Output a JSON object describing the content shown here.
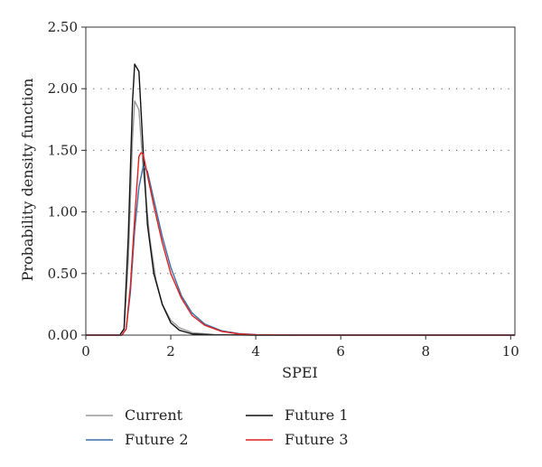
{
  "chart_data": {
    "type": "line",
    "title": "",
    "xlabel": "SPEI",
    "ylabel": "Probability density function",
    "xlim": [
      0,
      10.1
    ],
    "ylim": [
      0,
      2.5
    ],
    "x_ticks": [
      0,
      2,
      4,
      6,
      8,
      10
    ],
    "x_tick_labels": [
      "0",
      "2",
      "4",
      "6",
      "8",
      "10"
    ],
    "y_ticks": [
      0,
      0.5,
      1.0,
      1.5,
      2.0,
      2.5
    ],
    "y_tick_labels": [
      "0.00",
      "0.50",
      "1.00",
      "1.50",
      "2.00",
      "2.50"
    ],
    "grid": "horizontal dotted",
    "legend_position": "bottom",
    "series": [
      {
        "name": "Current",
        "color": "#999999",
        "x": [
          0,
          0.8,
          0.9,
          1.0,
          1.1,
          1.15,
          1.25,
          1.35,
          1.5,
          1.65,
          1.8,
          2.0,
          2.2,
          2.5,
          3.0,
          4.0,
          10.1
        ],
        "y": [
          0,
          0,
          0.05,
          0.6,
          1.6,
          1.9,
          1.83,
          1.35,
          0.8,
          0.45,
          0.25,
          0.12,
          0.06,
          0.02,
          0.005,
          0,
          0
        ]
      },
      {
        "name": "Future 1",
        "color": "#111111",
        "x": [
          0,
          0.8,
          0.9,
          1.0,
          1.1,
          1.15,
          1.25,
          1.35,
          1.45,
          1.6,
          1.8,
          2.0,
          2.2,
          2.5,
          3.0,
          4.0,
          10.1
        ],
        "y": [
          0,
          0,
          0.05,
          0.8,
          1.9,
          2.2,
          2.14,
          1.5,
          0.9,
          0.5,
          0.25,
          0.1,
          0.04,
          0.01,
          0.002,
          0,
          0
        ]
      },
      {
        "name": "Future 2",
        "color": "#3a6ea5",
        "x": [
          0,
          0.85,
          0.95,
          1.05,
          1.15,
          1.25,
          1.35,
          1.45,
          1.6,
          1.8,
          2.0,
          2.25,
          2.5,
          2.8,
          3.2,
          3.6,
          4.0,
          5.0,
          10.1
        ],
        "y": [
          0,
          0,
          0.05,
          0.35,
          0.85,
          1.2,
          1.37,
          1.33,
          1.1,
          0.8,
          0.55,
          0.32,
          0.18,
          0.09,
          0.035,
          0.012,
          0.004,
          0,
          0
        ]
      },
      {
        "name": "Future 3",
        "color": "#e02020",
        "x": [
          0,
          0.85,
          0.95,
          1.05,
          1.15,
          1.25,
          1.3,
          1.35,
          1.45,
          1.6,
          1.8,
          2.0,
          2.25,
          2.5,
          2.8,
          3.2,
          3.6,
          4.0,
          5.0,
          10.1
        ],
        "y": [
          0,
          0,
          0.05,
          0.4,
          0.95,
          1.45,
          1.48,
          1.47,
          1.3,
          1.05,
          0.75,
          0.5,
          0.3,
          0.16,
          0.08,
          0.03,
          0.01,
          0.003,
          0,
          0
        ]
      }
    ]
  }
}
